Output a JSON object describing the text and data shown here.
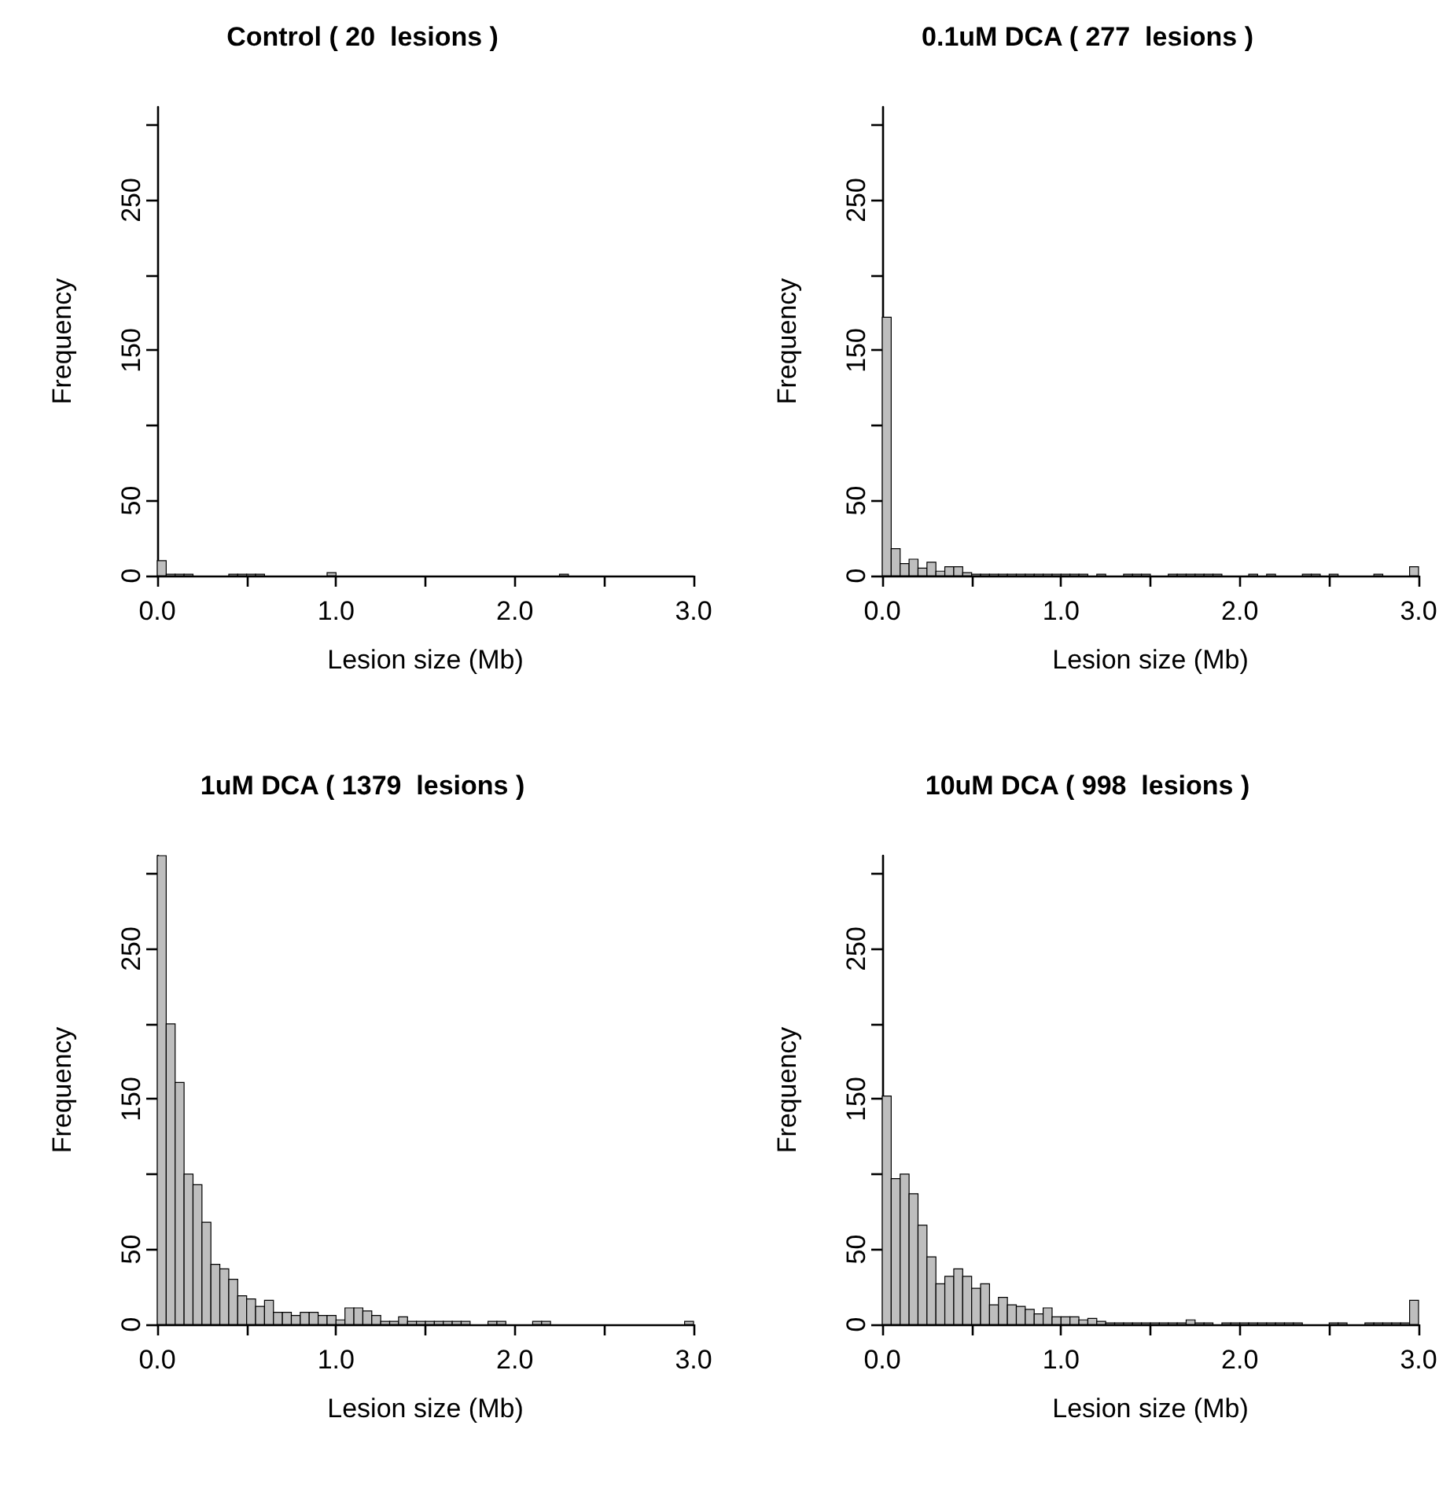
{
  "chart_data": [
    {
      "type": "histogram",
      "title": "Control ( 20  lesions )",
      "xlabel": "Lesion size (Mb)",
      "ylabel": "Frequency",
      "color": "#bebebe",
      "bins": [
        0,
        0.05,
        0.1,
        0.15,
        0.2,
        0.25,
        0.3,
        0.35,
        0.4,
        0.45,
        0.5,
        0.55,
        0.6,
        0.65,
        0.7,
        0.75,
        0.8,
        0.85,
        0.9,
        0.95,
        1,
        1.05,
        1.1,
        1.15,
        1.2,
        1.25,
        1.3,
        1.35,
        1.4,
        1.45,
        1.5,
        1.55,
        1.6,
        1.65,
        1.7,
        1.75,
        1.8,
        1.85,
        1.9,
        1.95,
        2,
        2.05,
        2.1,
        2.15,
        2.2,
        2.25,
        2.3,
        2.35,
        2.4,
        2.45,
        2.5,
        2.55,
        2.6,
        2.65,
        2.7,
        2.75,
        2.8,
        2.85,
        2.9,
        2.95,
        3
      ],
      "values": [
        10,
        1,
        1,
        1,
        0,
        0,
        0,
        0,
        1,
        1,
        1,
        1,
        0,
        0,
        0,
        0,
        0,
        0,
        0,
        2,
        0,
        0,
        0,
        0,
        0,
        0,
        0,
        0,
        0,
        0,
        0,
        0,
        0,
        0,
        0,
        0,
        0,
        0,
        0,
        0,
        0,
        0,
        0,
        0,
        0,
        1,
        0,
        0,
        0,
        0,
        0,
        0,
        0,
        0,
        0,
        0,
        0,
        0,
        0,
        0
      ],
      "xlim": [
        0,
        3
      ],
      "xticks": [
        {
          "value": 0,
          "label": "0.0"
        },
        {
          "value": 0.5,
          "label": null
        },
        {
          "value": 1,
          "label": "1.0"
        },
        {
          "value": 1.5,
          "label": null
        },
        {
          "value": 2,
          "label": "2.0"
        },
        {
          "value": 2.5,
          "label": null
        },
        {
          "value": 3,
          "label": "3.0"
        }
      ],
      "ylim": [
        0,
        312
      ],
      "yticks": [
        0,
        50,
        {
          "value": 100,
          "label": null
        },
        150,
        {
          "value": 200,
          "label": null
        },
        250,
        {
          "value": 300,
          "label": null
        }
      ]
    },
    {
      "type": "histogram",
      "title": "0.1uM DCA ( 277  lesions )",
      "xlabel": "Lesion size (Mb)",
      "ylabel": "Frequency",
      "color": "#bebebe",
      "bins": [
        0,
        0.05,
        0.1,
        0.15,
        0.2,
        0.25,
        0.3,
        0.35,
        0.4,
        0.45,
        0.5,
        0.55,
        0.6,
        0.65,
        0.7,
        0.75,
        0.8,
        0.85,
        0.9,
        0.95,
        1,
        1.05,
        1.1,
        1.15,
        1.2,
        1.25,
        1.3,
        1.35,
        1.4,
        1.45,
        1.5,
        1.55,
        1.6,
        1.65,
        1.7,
        1.75,
        1.8,
        1.85,
        1.9,
        1.95,
        2,
        2.05,
        2.1,
        2.15,
        2.2,
        2.25,
        2.3,
        2.35,
        2.4,
        2.45,
        2.5,
        2.55,
        2.6,
        2.65,
        2.7,
        2.75,
        2.8,
        2.85,
        2.9,
        2.95,
        3
      ],
      "values": [
        172,
        18,
        8,
        11,
        5,
        9,
        3,
        6,
        6,
        2,
        1,
        1,
        1,
        1,
        1,
        1,
        1,
        1,
        1,
        1,
        1,
        1,
        1,
        0,
        1,
        0,
        0,
        1,
        1,
        1,
        0,
        0,
        1,
        1,
        1,
        1,
        1,
        1,
        0,
        0,
        0,
        1,
        0,
        1,
        0,
        0,
        0,
        1,
        1,
        0,
        1,
        0,
        0,
        0,
        0,
        1,
        0,
        0,
        0,
        6
      ],
      "xlim": [
        0,
        3
      ],
      "xticks": [
        {
          "value": 0,
          "label": "0.0"
        },
        {
          "value": 0.5,
          "label": null
        },
        {
          "value": 1,
          "label": "1.0"
        },
        {
          "value": 1.5,
          "label": null
        },
        {
          "value": 2,
          "label": "2.0"
        },
        {
          "value": 2.5,
          "label": null
        },
        {
          "value": 3,
          "label": "3.0"
        }
      ],
      "ylim": [
        0,
        312
      ],
      "yticks": [
        0,
        50,
        {
          "value": 100,
          "label": null
        },
        150,
        {
          "value": 200,
          "label": null
        },
        250,
        {
          "value": 300,
          "label": null
        }
      ]
    },
    {
      "type": "histogram",
      "title": "1uM DCA ( 1379  lesions )",
      "xlabel": "Lesion size (Mb)",
      "ylabel": "Frequency",
      "color": "#bebebe",
      "bins": [
        0,
        0.05,
        0.1,
        0.15,
        0.2,
        0.25,
        0.3,
        0.35,
        0.4,
        0.45,
        0.5,
        0.55,
        0.6,
        0.65,
        0.7,
        0.75,
        0.8,
        0.85,
        0.9,
        0.95,
        1,
        1.05,
        1.1,
        1.15,
        1.2,
        1.25,
        1.3,
        1.35,
        1.4,
        1.45,
        1.5,
        1.55,
        1.6,
        1.65,
        1.7,
        1.75,
        1.8,
        1.85,
        1.9,
        1.95,
        2,
        2.05,
        2.1,
        2.15,
        2.2,
        2.25,
        2.3,
        2.35,
        2.4,
        2.45,
        2.5,
        2.55,
        2.6,
        2.65,
        2.7,
        2.75,
        2.8,
        2.85,
        2.9,
        2.95,
        3
      ],
      "values": [
        312,
        200,
        161,
        100,
        93,
        68,
        40,
        37,
        30,
        19,
        17,
        12,
        16,
        8,
        8,
        6,
        8,
        8,
        6,
        6,
        3,
        11,
        11,
        9,
        6,
        2,
        2,
        5,
        2,
        2,
        2,
        2,
        2,
        2,
        2,
        0,
        0,
        2,
        2,
        0,
        0,
        0,
        2,
        2,
        0,
        0,
        0,
        0,
        0,
        0,
        0,
        0,
        0,
        0,
        0,
        0,
        0,
        0,
        0,
        2
      ],
      "xlim": [
        0,
        3
      ],
      "xticks": [
        {
          "value": 0,
          "label": "0.0"
        },
        {
          "value": 0.5,
          "label": null
        },
        {
          "value": 1,
          "label": "1.0"
        },
        {
          "value": 1.5,
          "label": null
        },
        {
          "value": 2,
          "label": "2.0"
        },
        {
          "value": 2.5,
          "label": null
        },
        {
          "value": 3,
          "label": "3.0"
        }
      ],
      "ylim": [
        0,
        312
      ],
      "yticks": [
        0,
        50,
        {
          "value": 100,
          "label": null
        },
        150,
        {
          "value": 200,
          "label": null
        },
        250,
        {
          "value": 300,
          "label": null
        }
      ]
    },
    {
      "type": "histogram",
      "title": "10uM DCA ( 998  lesions )",
      "xlabel": "Lesion size (Mb)",
      "ylabel": "Frequency",
      "color": "#bebebe",
      "bins": [
        0,
        0.05,
        0.1,
        0.15,
        0.2,
        0.25,
        0.3,
        0.35,
        0.4,
        0.45,
        0.5,
        0.55,
        0.6,
        0.65,
        0.7,
        0.75,
        0.8,
        0.85,
        0.9,
        0.95,
        1,
        1.05,
        1.1,
        1.15,
        1.2,
        1.25,
        1.3,
        1.35,
        1.4,
        1.45,
        1.5,
        1.55,
        1.6,
        1.65,
        1.7,
        1.75,
        1.8,
        1.85,
        1.9,
        1.95,
        2,
        2.05,
        2.1,
        2.15,
        2.2,
        2.25,
        2.3,
        2.35,
        2.4,
        2.45,
        2.5,
        2.55,
        2.6,
        2.65,
        2.7,
        2.75,
        2.8,
        2.85,
        2.9,
        2.95,
        3
      ],
      "values": [
        152,
        97,
        100,
        87,
        66,
        45,
        27,
        32,
        37,
        32,
        24,
        27,
        13,
        18,
        13,
        12,
        10,
        7,
        11,
        5,
        5,
        5,
        3,
        4,
        2,
        1,
        1,
        1,
        1,
        1,
        1,
        1,
        1,
        1,
        3,
        1,
        1,
        0,
        1,
        1,
        1,
        1,
        1,
        1,
        1,
        1,
        1,
        0,
        0,
        0,
        1,
        1,
        0,
        0,
        1,
        1,
        1,
        1,
        1,
        16
      ],
      "xlim": [
        0,
        3
      ],
      "xticks": [
        {
          "value": 0,
          "label": "0.0"
        },
        {
          "value": 0.5,
          "label": null
        },
        {
          "value": 1,
          "label": "1.0"
        },
        {
          "value": 1.5,
          "label": null
        },
        {
          "value": 2,
          "label": "2.0"
        },
        {
          "value": 2.5,
          "label": null
        },
        {
          "value": 3,
          "label": "3.0"
        }
      ],
      "ylim": [
        0,
        312
      ],
      "yticks": [
        0,
        50,
        {
          "value": 100,
          "label": null
        },
        150,
        {
          "value": 200,
          "label": null
        },
        250,
        {
          "value": 300,
          "label": null
        }
      ]
    }
  ]
}
